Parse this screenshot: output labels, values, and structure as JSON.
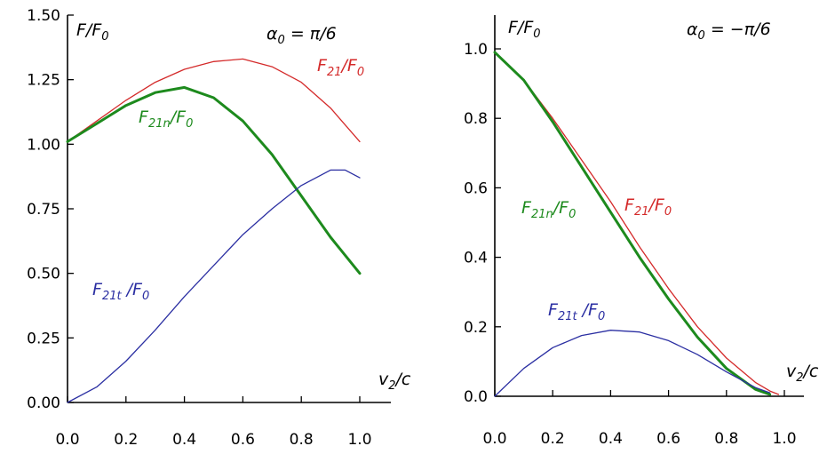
{
  "chart_data": [
    {
      "type": "line",
      "ylabel": "F/F",
      "ylabel_sub": "0",
      "annotation": {
        "main": "α",
        "sub": "0",
        "rest": " = π/6"
      },
      "xlabel": {
        "main": "v",
        "sub": "2",
        "rest": "/c"
      },
      "xlim": [
        0,
        1.05
      ],
      "ylim": [
        0,
        1.5
      ],
      "x_ticks": [
        "0.0",
        "0.2",
        "0.4",
        "0.6",
        "0.8",
        "1.0"
      ],
      "y_ticks": [
        "0.00",
        "0.25",
        "0.50",
        "0.75",
        "1.00",
        "1.25",
        "1.50"
      ],
      "series": [
        {
          "name": "F21/F0",
          "color": "#d42a2a",
          "width": 1.3,
          "label": {
            "main": "F",
            "sub": "21",
            "rest": "/F",
            "sub2": "0"
          },
          "x": [
            0,
            0.1,
            0.2,
            0.3,
            0.4,
            0.5,
            0.6,
            0.7,
            0.8,
            0.9,
            1.0
          ],
          "y": [
            1.01,
            1.09,
            1.17,
            1.24,
            1.29,
            1.32,
            1.33,
            1.3,
            1.24,
            1.14,
            1.01
          ]
        },
        {
          "name": "F21n/F0",
          "color": "#1d8a1d",
          "width": 3,
          "label": {
            "main": "F",
            "sub": "21n",
            "rest": "/F",
            "sub2": "0"
          },
          "x": [
            0,
            0.1,
            0.2,
            0.3,
            0.4,
            0.5,
            0.6,
            0.7,
            0.8,
            0.9,
            1.0
          ],
          "y": [
            1.01,
            1.08,
            1.15,
            1.2,
            1.22,
            1.18,
            1.09,
            0.96,
            0.8,
            0.64,
            0.5
          ]
        },
        {
          "name": "F21t/F0",
          "color": "#2b2fa2",
          "width": 1.3,
          "label": {
            "main": "F",
            "sub": "21t",
            "rest": " /F",
            "sub2": "0"
          },
          "x": [
            0,
            0.1,
            0.2,
            0.3,
            0.4,
            0.5,
            0.6,
            0.7,
            0.8,
            0.9,
            0.95,
            1.0
          ],
          "y": [
            0,
            0.06,
            0.16,
            0.28,
            0.41,
            0.53,
            0.65,
            0.75,
            0.84,
            0.9,
            0.9,
            0.87
          ]
        }
      ]
    },
    {
      "type": "line",
      "ylabel": "F/F",
      "ylabel_sub": "0",
      "annotation": {
        "main": "α",
        "sub": "0",
        "rest": " = −π/6"
      },
      "xlabel": {
        "main": "v",
        "sub": "2",
        "rest": "/c"
      },
      "xlim": [
        0,
        1.05
      ],
      "ylim": [
        0,
        1.1
      ],
      "x_ticks": [
        "0.0",
        "0.2",
        "0.4",
        "0.6",
        "0.8",
        "1.0"
      ],
      "y_ticks": [
        "0.0",
        "0.2",
        "0.4",
        "0.6",
        "0.8",
        "1.0"
      ],
      "series": [
        {
          "name": "F21/F0",
          "color": "#d42a2a",
          "width": 1.3,
          "label": {
            "main": "F",
            "sub": "21",
            "rest": "/F",
            "sub2": "0"
          },
          "x": [
            0,
            0.1,
            0.2,
            0.3,
            0.4,
            0.5,
            0.6,
            0.7,
            0.8,
            0.9,
            0.95,
            0.98
          ],
          "y": [
            0.99,
            0.91,
            0.8,
            0.68,
            0.56,
            0.43,
            0.31,
            0.2,
            0.11,
            0.04,
            0.015,
            0.005
          ]
        },
        {
          "name": "F21n/F0",
          "color": "#1d8a1d",
          "width": 3,
          "label": {
            "main": "F",
            "sub": "21n",
            "rest": "/F",
            "sub2": "0"
          },
          "x": [
            0,
            0.1,
            0.2,
            0.3,
            0.4,
            0.5,
            0.6,
            0.7,
            0.8,
            0.9,
            0.95
          ],
          "y": [
            0.99,
            0.91,
            0.79,
            0.66,
            0.53,
            0.4,
            0.28,
            0.17,
            0.08,
            0.02,
            0.005
          ]
        },
        {
          "name": "F21t/F0",
          "color": "#2b2fa2",
          "width": 1.3,
          "label": {
            "main": "F",
            "sub": "21t",
            "rest": " /F",
            "sub2": "0"
          },
          "x": [
            0,
            0.1,
            0.2,
            0.3,
            0.4,
            0.5,
            0.6,
            0.7,
            0.8,
            0.9,
            0.95
          ],
          "y": [
            0,
            0.08,
            0.14,
            0.175,
            0.19,
            0.185,
            0.16,
            0.12,
            0.07,
            0.025,
            0.01
          ]
        }
      ]
    }
  ]
}
